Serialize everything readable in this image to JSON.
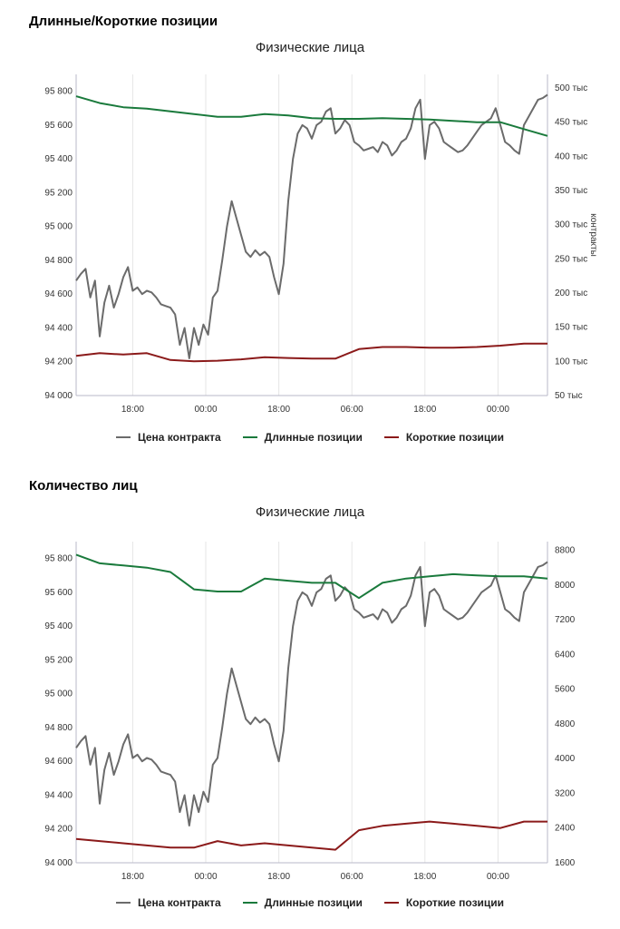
{
  "charts_section_1": {
    "heading": "Длинные/Короткие позиции"
  },
  "charts_section_2": {
    "heading": "Количество лиц"
  },
  "colors": {
    "price": "#6b6b6b",
    "long": "#1a7a3c",
    "short": "#8b1a1a",
    "grid": "#e6e6e6"
  },
  "chart_data": [
    {
      "type": "line",
      "title": "Физические лица",
      "xlabel": "",
      "ylabel": "",
      "y2label": "контракты",
      "x_ticks": [
        "18:00",
        "00:00",
        "18:00",
        "06:00",
        "18:00",
        "00:00"
      ],
      "y_ticks": [
        "95 800",
        "95 600",
        "95 400",
        "95 200",
        "95 000",
        "94 800",
        "94 600",
        "94 400",
        "94 200",
        "94 000"
      ],
      "ylim": [
        94000,
        95900
      ],
      "y2_ticks": [
        "500 тыс",
        "450 тыс",
        "400 тыс",
        "350 тыс",
        "300 тыс",
        "250 тыс",
        "200 тыс",
        "150 тыс",
        "100 тыс",
        "50 тыс"
      ],
      "y2lim": [
        50000,
        520000
      ],
      "legend": [
        "Цена контракта",
        "Длинные позиции",
        "Короткие позиции"
      ],
      "series": [
        {
          "name": "Цена контракта",
          "axis": "left",
          "x": [
            0,
            1,
            2,
            3,
            4,
            5,
            6,
            7,
            8,
            9,
            10,
            11,
            12,
            13,
            14,
            15,
            16,
            17,
            18,
            19,
            20,
            21,
            22,
            23,
            24,
            25,
            26,
            27,
            28,
            29,
            30,
            31,
            32,
            33,
            34,
            35,
            36,
            37,
            38,
            39,
            40,
            41,
            42,
            43,
            44,
            45,
            46,
            47,
            48,
            49,
            50,
            51,
            52,
            53,
            54,
            55,
            56,
            57,
            58,
            59,
            60,
            61,
            62,
            63,
            64,
            65,
            66,
            67,
            68,
            69,
            70,
            71,
            72,
            73,
            74,
            75,
            76,
            77,
            78,
            79,
            80,
            81,
            82,
            83,
            84,
            85,
            86,
            87,
            88,
            89,
            90,
            91,
            92,
            93,
            94,
            95,
            96,
            97,
            98,
            99,
            100
          ],
          "values": [
            94680,
            94720,
            94750,
            94580,
            94680,
            94350,
            94550,
            94650,
            94520,
            94600,
            94700,
            94760,
            94620,
            94640,
            94600,
            94620,
            94610,
            94580,
            94540,
            94530,
            94520,
            94480,
            94300,
            94400,
            94220,
            94400,
            94300,
            94420,
            94360,
            94580,
            94620,
            94800,
            95000,
            95150,
            95050,
            94950,
            94850,
            94820,
            94860,
            94830,
            94850,
            94820,
            94700,
            94600,
            94780,
            95150,
            95400,
            95550,
            95600,
            95580,
            95520,
            95600,
            95620,
            95680,
            95700,
            95550,
            95580,
            95630,
            95600,
            95500,
            95480,
            95450,
            95460,
            95470,
            95440,
            95500,
            95480,
            95420,
            95450,
            95500,
            95520,
            95580,
            95700,
            95750,
            95400,
            95600,
            95620,
            95580,
            95500,
            95480,
            95460,
            95440,
            95450,
            95480,
            95520,
            95560,
            95600,
            95620,
            95640,
            95700,
            95600,
            95500,
            95480,
            95450,
            95430,
            95600,
            95650,
            95700,
            95750,
            95760,
            95780
          ]
        },
        {
          "name": "Длинные позиции",
          "axis": "right",
          "x": [
            0,
            5,
            10,
            15,
            20,
            25,
            30,
            35,
            40,
            45,
            50,
            55,
            60,
            65,
            70,
            75,
            80,
            85,
            90,
            95,
            100
          ],
          "values": [
            488000,
            478000,
            472000,
            470000,
            466000,
            462000,
            458000,
            458000,
            462000,
            460000,
            456000,
            455000,
            455000,
            456000,
            455000,
            454000,
            452000,
            450000,
            450000,
            440000,
            430000
          ]
        },
        {
          "name": "Короткие позиции",
          "axis": "right",
          "x": [
            0,
            5,
            10,
            15,
            20,
            25,
            30,
            35,
            40,
            45,
            50,
            55,
            60,
            65,
            70,
            75,
            80,
            85,
            90,
            95,
            100
          ],
          "values": [
            108000,
            112000,
            110000,
            112000,
            102000,
            100000,
            101000,
            103000,
            106000,
            105000,
            104000,
            104000,
            118000,
            121000,
            121000,
            120000,
            120000,
            121000,
            123000,
            126000,
            126000
          ]
        }
      ]
    },
    {
      "type": "line",
      "title": "Физические лица",
      "xlabel": "",
      "ylabel": "",
      "x_ticks": [
        "18:00",
        "00:00",
        "18:00",
        "06:00",
        "18:00",
        "00:00"
      ],
      "y_ticks": [
        "95 800",
        "95 600",
        "95 400",
        "95 200",
        "95 000",
        "94 800",
        "94 600",
        "94 400",
        "94 200",
        "94 000"
      ],
      "ylim": [
        94000,
        95900
      ],
      "y2_ticks": [
        "8800",
        "8000",
        "7200",
        "6400",
        "5600",
        "4800",
        "4000",
        "3200",
        "2400",
        "1600"
      ],
      "y2lim": [
        1600,
        9000
      ],
      "legend": [
        "Цена контракта",
        "Длинные позиции",
        "Короткие позиции"
      ],
      "series": [
        {
          "name": "Цена контракта",
          "axis": "left",
          "x": [
            0,
            1,
            2,
            3,
            4,
            5,
            6,
            7,
            8,
            9,
            10,
            11,
            12,
            13,
            14,
            15,
            16,
            17,
            18,
            19,
            20,
            21,
            22,
            23,
            24,
            25,
            26,
            27,
            28,
            29,
            30,
            31,
            32,
            33,
            34,
            35,
            36,
            37,
            38,
            39,
            40,
            41,
            42,
            43,
            44,
            45,
            46,
            47,
            48,
            49,
            50,
            51,
            52,
            53,
            54,
            55,
            56,
            57,
            58,
            59,
            60,
            61,
            62,
            63,
            64,
            65,
            66,
            67,
            68,
            69,
            70,
            71,
            72,
            73,
            74,
            75,
            76,
            77,
            78,
            79,
            80,
            81,
            82,
            83,
            84,
            85,
            86,
            87,
            88,
            89,
            90,
            91,
            92,
            93,
            94,
            95,
            96,
            97,
            98,
            99,
            100
          ],
          "values": [
            94680,
            94720,
            94750,
            94580,
            94680,
            94350,
            94550,
            94650,
            94520,
            94600,
            94700,
            94760,
            94620,
            94640,
            94600,
            94620,
            94610,
            94580,
            94540,
            94530,
            94520,
            94480,
            94300,
            94400,
            94220,
            94400,
            94300,
            94420,
            94360,
            94580,
            94620,
            94800,
            95000,
            95150,
            95050,
            94950,
            94850,
            94820,
            94860,
            94830,
            94850,
            94820,
            94700,
            94600,
            94780,
            95150,
            95400,
            95550,
            95600,
            95580,
            95520,
            95600,
            95620,
            95680,
            95700,
            95550,
            95580,
            95630,
            95600,
            95500,
            95480,
            95450,
            95460,
            95470,
            95440,
            95500,
            95480,
            95420,
            95450,
            95500,
            95520,
            95580,
            95700,
            95750,
            95400,
            95600,
            95620,
            95580,
            95500,
            95480,
            95460,
            95440,
            95450,
            95480,
            95520,
            95560,
            95600,
            95620,
            95640,
            95700,
            95600,
            95500,
            95480,
            95450,
            95430,
            95600,
            95650,
            95700,
            95750,
            95760,
            95780
          ]
        },
        {
          "name": "Длинные позиции",
          "axis": "right",
          "x": [
            0,
            5,
            10,
            15,
            20,
            25,
            30,
            35,
            40,
            45,
            50,
            55,
            60,
            65,
            70,
            75,
            80,
            85,
            90,
            95,
            100
          ],
          "values": [
            8700,
            8500,
            8450,
            8400,
            8300,
            7900,
            7850,
            7850,
            8150,
            8100,
            8050,
            8050,
            7700,
            8050,
            8150,
            8200,
            8250,
            8220,
            8200,
            8200,
            8150
          ]
        },
        {
          "name": "Короткие позиции",
          "axis": "right",
          "x": [
            0,
            5,
            10,
            15,
            20,
            25,
            30,
            35,
            40,
            45,
            50,
            55,
            60,
            65,
            70,
            75,
            80,
            85,
            90,
            95,
            100
          ],
          "values": [
            2150,
            2100,
            2050,
            2000,
            1950,
            1950,
            2100,
            2000,
            2050,
            2000,
            1950,
            1900,
            2350,
            2450,
            2500,
            2550,
            2500,
            2450,
            2400,
            2550,
            2550
          ]
        }
      ]
    }
  ]
}
